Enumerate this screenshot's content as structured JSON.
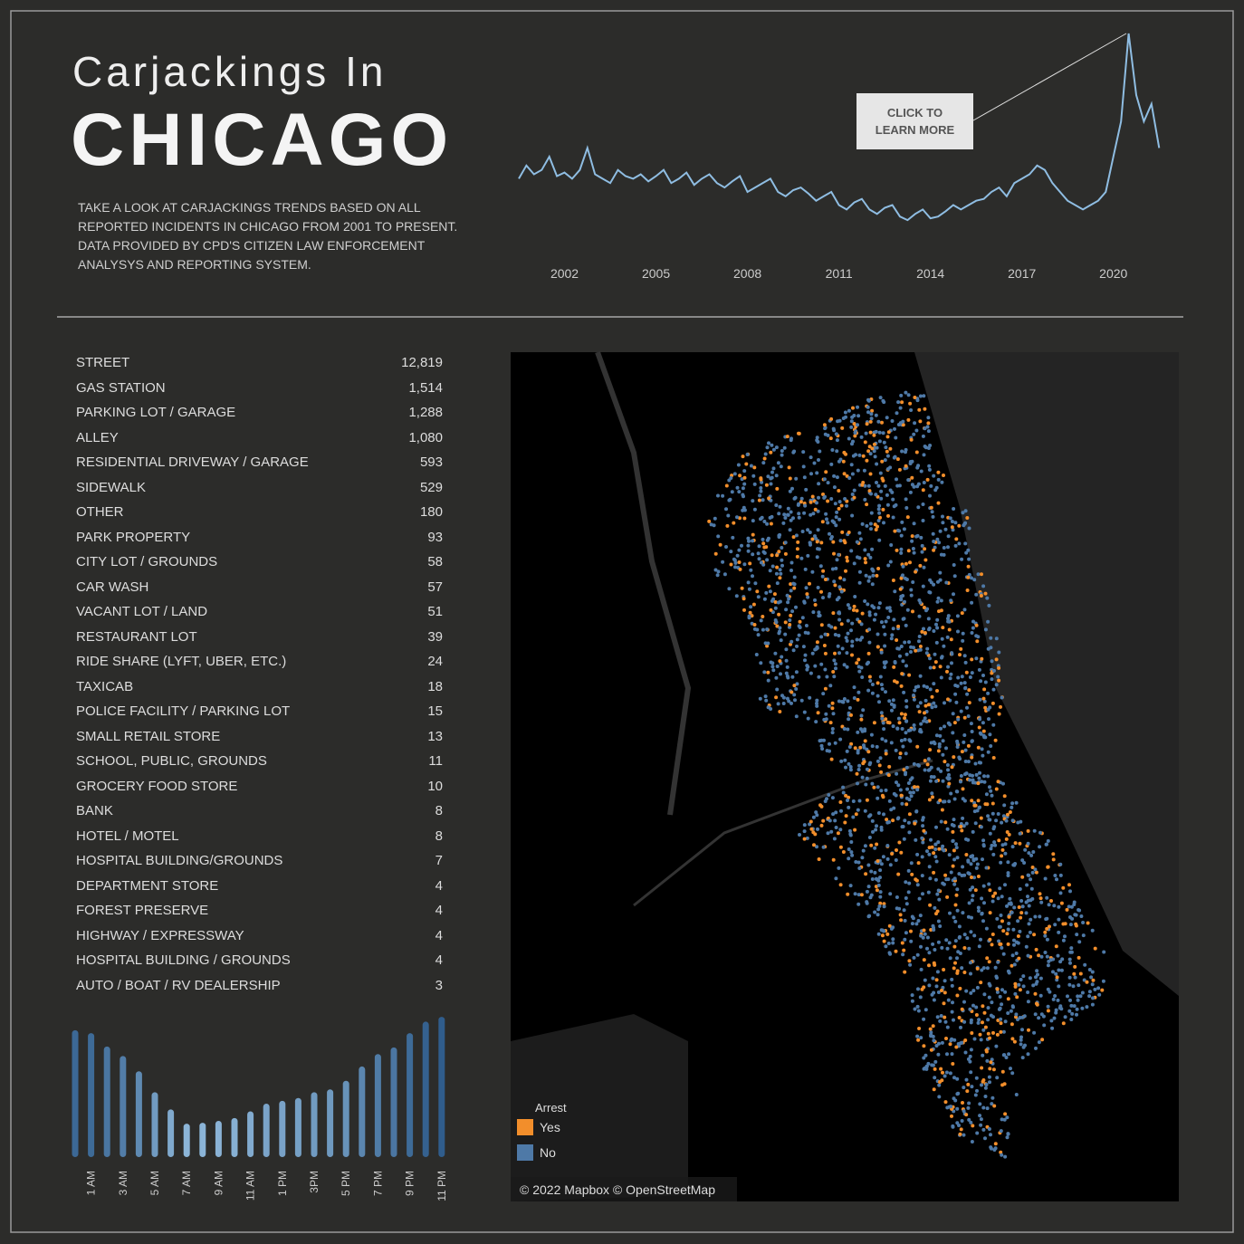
{
  "header": {
    "title_line1": "Carjackings In",
    "title_line2": "CHICAGO",
    "description": "TAKE A LOOK AT CARJACKINGS TRENDS BASED ON ALL REPORTED INCIDENTS IN CHICAGO FROM 2001 TO PRESENT. DATA PROVIDED BY CPD'S CITIZEN LAW ENFORCEMENT ANALYSYS AND REPORTING SYSTEM."
  },
  "button": {
    "label": "CLICK TO LEARN MORE"
  },
  "chart_data": [
    {
      "type": "line",
      "color": "#8fbde2",
      "x": [
        2000.5,
        2000.75,
        2001,
        2001.25,
        2001.5,
        2001.75,
        2002,
        2002.25,
        2002.5,
        2002.75,
        2003,
        2003.25,
        2003.5,
        2003.75,
        2004,
        2004.25,
        2004.5,
        2004.75,
        2005,
        2005.25,
        2005.5,
        2005.75,
        2006,
        2006.25,
        2006.5,
        2006.75,
        2007,
        2007.25,
        2007.5,
        2007.75,
        2008,
        2008.25,
        2008.5,
        2008.75,
        2009,
        2009.25,
        2009.5,
        2009.75,
        2010,
        2010.25,
        2010.5,
        2010.75,
        2011,
        2011.25,
        2011.5,
        2011.75,
        2012,
        2012.25,
        2012.5,
        2012.75,
        2013,
        2013.25,
        2013.5,
        2013.75,
        2014,
        2014.25,
        2014.5,
        2014.75,
        2015,
        2015.25,
        2015.5,
        2015.75,
        2016,
        2016.25,
        2016.5,
        2016.75,
        2017,
        2017.25,
        2017.5,
        2017.75,
        2018,
        2018.25,
        2018.5,
        2018.75,
        2019,
        2019.25,
        2019.5,
        2019.75,
        2020,
        2020.25,
        2020.5,
        2020.75,
        2021,
        2021.25,
        2021.5
      ],
      "values": [
        85,
        100,
        90,
        95,
        110,
        88,
        92,
        85,
        95,
        120,
        90,
        85,
        80,
        95,
        88,
        85,
        90,
        82,
        88,
        95,
        80,
        85,
        92,
        78,
        85,
        90,
        80,
        75,
        82,
        88,
        70,
        75,
        80,
        85,
        70,
        65,
        72,
        75,
        68,
        60,
        65,
        70,
        55,
        50,
        58,
        62,
        50,
        45,
        52,
        55,
        42,
        38,
        45,
        50,
        40,
        42,
        48,
        55,
        50,
        55,
        60,
        62,
        70,
        75,
        65,
        80,
        85,
        90,
        100,
        95,
        80,
        70,
        60,
        55,
        50,
        55,
        60,
        70,
        110,
        150,
        250,
        180,
        150,
        170,
        120
      ],
      "xlim": [
        2000.5,
        2021.7
      ],
      "ylim": [
        0,
        250
      ],
      "xticks": [
        2002,
        2005,
        2008,
        2011,
        2014,
        2017,
        2020
      ]
    },
    {
      "type": "bar",
      "color_range": [
        "#a9d0ef",
        "#2e5b8a"
      ],
      "categories": [
        null,
        "1 AM",
        null,
        "3 AM",
        null,
        "5 AM",
        null,
        "7 AM",
        null,
        "9 AM",
        null,
        "11 AM",
        null,
        "1 PM",
        null,
        "3PM",
        null,
        "5 PM",
        null,
        "7 PM",
        null,
        "9 PM",
        null,
        "11 PM"
      ],
      "values": [
        133,
        130,
        116,
        106,
        90,
        68,
        50,
        35,
        36,
        38,
        41,
        48,
        56,
        59,
        62,
        68,
        71,
        80,
        95,
        108,
        115,
        130,
        142,
        147
      ],
      "ylim": [
        0,
        150
      ]
    }
  ],
  "location_table": {
    "rows": [
      [
        "STREET",
        "12,819"
      ],
      [
        "GAS STATION",
        "1,514"
      ],
      [
        "PARKING LOT / GARAGE",
        "1,288"
      ],
      [
        "ALLEY",
        "1,080"
      ],
      [
        "RESIDENTIAL DRIVEWAY / GARAGE",
        "593"
      ],
      [
        "SIDEWALK",
        "529"
      ],
      [
        "OTHER",
        "180"
      ],
      [
        "PARK PROPERTY",
        "93"
      ],
      [
        "CITY LOT / GROUNDS",
        "58"
      ],
      [
        "CAR WASH",
        "57"
      ],
      [
        "VACANT LOT / LAND",
        "51"
      ],
      [
        "RESTAURANT LOT",
        "39"
      ],
      [
        "RIDE SHARE (LYFT, UBER, ETC.)",
        "24"
      ],
      [
        "TAXICAB",
        "18"
      ],
      [
        "POLICE FACILITY / PARKING LOT",
        "15"
      ],
      [
        "SMALL RETAIL STORE",
        "13"
      ],
      [
        "SCHOOL, PUBLIC, GROUNDS",
        "11"
      ],
      [
        "GROCERY FOOD STORE",
        "10"
      ],
      [
        "BANK",
        "8"
      ],
      [
        "HOTEL / MOTEL",
        "8"
      ],
      [
        "HOSPITAL BUILDING/GROUNDS",
        "7"
      ],
      [
        "DEPARTMENT STORE",
        "4"
      ],
      [
        "FOREST PRESERVE",
        "4"
      ],
      [
        "HIGHWAY / EXPRESSWAY",
        "4"
      ],
      [
        "HOSPITAL BUILDING / GROUNDS",
        "4"
      ],
      [
        "AUTO / BOAT / RV DEALERSHIP",
        "3"
      ]
    ]
  },
  "map": {
    "legend_title": "Arrest",
    "legend": [
      {
        "name": "Yes",
        "color": "#f28e2b"
      },
      {
        "name": "No",
        "color": "#4e79a7"
      }
    ],
    "attribution": "© 2022 Mapbox © OpenStreetMap"
  }
}
